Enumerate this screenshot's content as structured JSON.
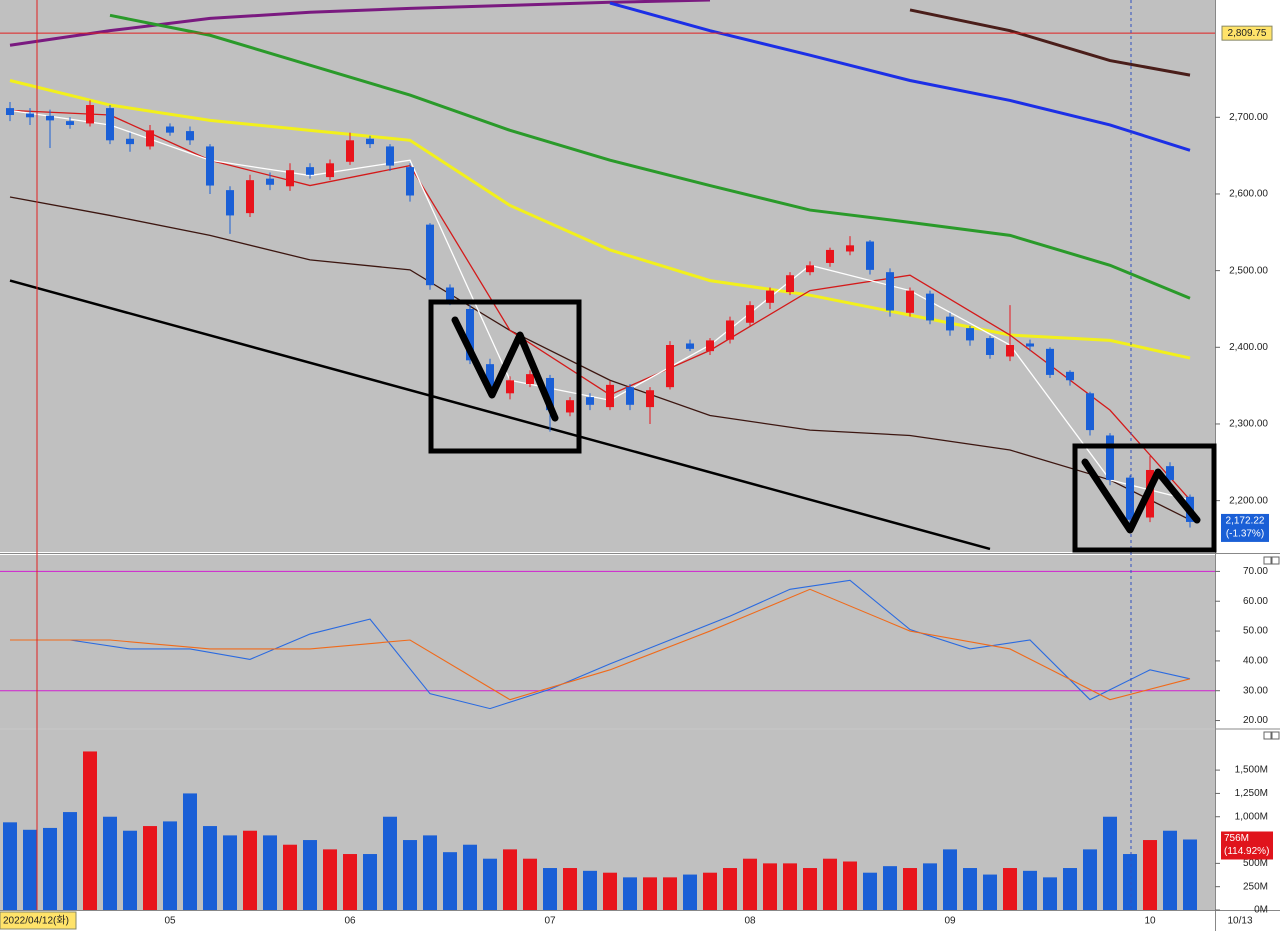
{
  "chart_data": [
    {
      "type": "candlestick",
      "categories": [
        null,
        null,
        null,
        null,
        null,
        null,
        null,
        null,
        "05",
        null,
        null,
        null,
        null,
        null,
        null,
        null,
        null,
        "06",
        null,
        null,
        null,
        null,
        null,
        null,
        null,
        null,
        null,
        "07",
        null,
        null,
        null,
        null,
        null,
        null,
        null,
        null,
        null,
        "08",
        null,
        null,
        null,
        null,
        null,
        null,
        null,
        null,
        null,
        "09",
        null,
        null,
        null,
        null,
        null,
        null,
        null,
        null,
        null,
        "10",
        null,
        null
      ],
      "open": [
        2712,
        2705,
        2702,
        2695,
        2692,
        2712,
        2672,
        2662,
        2688,
        2682,
        2662,
        2605,
        2575,
        2620,
        2610,
        2635,
        2622,
        2642,
        2672,
        2662,
        2635,
        2560,
        2478,
        2450,
        2378,
        2340,
        2352,
        2360,
        2315,
        2335,
        2322,
        2348,
        2322,
        2348,
        2405,
        2395,
        2410,
        2432,
        2458,
        2472,
        2498,
        2510,
        2525,
        2538,
        2498,
        2445,
        2470,
        2440,
        2425,
        2412,
        2388,
        2405,
        2398,
        2368,
        2340,
        2285,
        2230,
        2178,
        2245,
        2205
      ],
      "high": [
        2720,
        2712,
        2710,
        2700,
        2722,
        2716,
        2680,
        2690,
        2692,
        2688,
        2665,
        2610,
        2625,
        2628,
        2640,
        2640,
        2645,
        2680,
        2676,
        2665,
        2640,
        2562,
        2482,
        2455,
        2385,
        2362,
        2370,
        2364,
        2335,
        2340,
        2356,
        2352,
        2348,
        2408,
        2410,
        2412,
        2440,
        2460,
        2478,
        2498,
        2512,
        2530,
        2545,
        2540,
        2503,
        2478,
        2474,
        2445,
        2428,
        2415,
        2455,
        2410,
        2400,
        2370,
        2342,
        2288,
        2233,
        2258,
        2250,
        2208
      ],
      "low": [
        2695,
        2690,
        2660,
        2685,
        2688,
        2665,
        2655,
        2658,
        2676,
        2664,
        2600,
        2548,
        2570,
        2605,
        2604,
        2620,
        2618,
        2638,
        2660,
        2630,
        2590,
        2475,
        2455,
        2378,
        2336,
        2332,
        2348,
        2290,
        2310,
        2318,
        2318,
        2318,
        2300,
        2345,
        2395,
        2390,
        2405,
        2428,
        2450,
        2468,
        2494,
        2505,
        2520,
        2495,
        2440,
        2440,
        2430,
        2415,
        2402,
        2385,
        2382,
        2395,
        2360,
        2350,
        2285,
        2220,
        2160,
        2172,
        2222,
        2165
      ],
      "close": [
        2703,
        2700,
        2696,
        2690,
        2716,
        2670,
        2665,
        2683,
        2680,
        2670,
        2611,
        2572,
        2618,
        2612,
        2631,
        2625,
        2640,
        2670,
        2665,
        2637,
        2598,
        2481,
        2461,
        2383,
        2344,
        2357,
        2365,
        2318,
        2331,
        2325,
        2351,
        2325,
        2344,
        2403,
        2398,
        2409,
        2435,
        2455,
        2474,
        2494,
        2507,
        2527,
        2533,
        2501,
        2448,
        2474,
        2435,
        2422,
        2409,
        2390,
        2403,
        2401,
        2364,
        2357,
        2292,
        2227,
        2175,
        2240,
        2227,
        2172.22
      ],
      "up_color": "#e8141c",
      "down_color": "#1a5fd6",
      "series": [
        {
          "color": "#7a1a80",
          "x": [
            0,
            5,
            10,
            15,
            20,
            25,
            30,
            35
          ],
          "values": [
            2794,
            2813,
            2829,
            2837,
            2842,
            2846,
            2850,
            2853
          ]
        },
        {
          "color": "#4a1e1a",
          "x": [
            45,
            50,
            55,
            59
          ],
          "values": [
            2840,
            2813,
            2774,
            2755
          ]
        },
        {
          "color": "#1c2fe6",
          "x": [
            30,
            35,
            40,
            45,
            50,
            55,
            59
          ],
          "values": [
            2849,
            2813,
            2781,
            2748,
            2722,
            2690,
            2657
          ]
        },
        {
          "color": "#2a9a2a",
          "x": [
            5,
            10,
            15,
            20,
            25,
            30,
            35,
            40,
            45,
            50,
            55,
            59
          ],
          "values": [
            2833,
            2807,
            2768,
            2729,
            2683,
            2644,
            2611,
            2579,
            2563,
            2546,
            2507,
            2464
          ]
        },
        {
          "color": "#f2f01c",
          "x": [
            0,
            5,
            10,
            15,
            20,
            25,
            30,
            35,
            40,
            45,
            50,
            55,
            59
          ],
          "values": [
            2748,
            2716,
            2696,
            2683,
            2670,
            2585,
            2527,
            2487,
            2468,
            2442,
            2416,
            2409,
            2386
          ]
        },
        {
          "color": "#3c1610",
          "x": [
            0,
            5,
            10,
            15,
            20,
            25,
            30,
            35,
            40,
            45,
            50,
            55,
            59
          ],
          "values": [
            2596,
            2572,
            2546,
            2514,
            2501,
            2422,
            2357,
            2311,
            2292,
            2285,
            2266,
            2227,
            2175
          ]
        },
        {
          "color": "#d41a1a",
          "x": [
            0,
            5,
            10,
            15,
            20,
            25,
            30,
            35,
            40,
            45,
            50,
            55,
            59
          ],
          "values": [
            2709,
            2703,
            2644,
            2611,
            2637,
            2422,
            2338,
            2396,
            2474,
            2494,
            2416,
            2318,
            2201
          ]
        },
        {
          "color": "#ffffff",
          "x": [
            0,
            5,
            10,
            15,
            20,
            25,
            30,
            35,
            40,
            45,
            50,
            55,
            59
          ],
          "values": [
            2709,
            2690,
            2644,
            2624,
            2644,
            2357,
            2331,
            2403,
            2507,
            2474,
            2403,
            2227,
            2201
          ]
        },
        {
          "color": "#000000",
          "x": [
            0,
            49
          ],
          "values": [
            2487,
            2137
          ]
        }
      ],
      "ylim": [
        2133,
        2853
      ],
      "yticks": [
        {
          "value": 2200,
          "label": "2,200.00"
        },
        {
          "value": 2300,
          "label": "2,300.00"
        },
        {
          "value": 2400,
          "label": "2,400.00"
        },
        {
          "value": 2500,
          "label": "2,500.00"
        },
        {
          "value": 2600,
          "label": "2,600.00"
        },
        {
          "value": 2700,
          "label": "2,700.00"
        }
      ],
      "ref_line": {
        "value": 2809.75,
        "label": "2,809.75"
      },
      "last_label": "2,172.22",
      "change_label": "(-1.37%)",
      "crosshair_date": "2022/04/12(화)",
      "end_date": "10/13"
    },
    {
      "type": "line",
      "series": [
        {
          "color": "#2a6ae0",
          "x": [
            0,
            3,
            6,
            9,
            12,
            15,
            18,
            21,
            24,
            27,
            30,
            33,
            36,
            39,
            42,
            45,
            48,
            51,
            54,
            57,
            59
          ],
          "values": [
            47,
            47,
            44,
            44,
            40.5,
            49,
            54,
            29,
            24,
            30.5,
            39,
            47,
            55,
            64,
            67,
            50.5,
            44,
            47,
            27,
            37,
            34
          ]
        },
        {
          "color": "#f06a1a",
          "x": [
            0,
            5,
            10,
            15,
            20,
            25,
            30,
            35,
            40,
            45,
            50,
            55,
            59
          ],
          "values": [
            47,
            47,
            44,
            44,
            47,
            27,
            37,
            50,
            64,
            50,
            44,
            27,
            34
          ]
        }
      ],
      "levels": [
        70,
        30
      ],
      "level_color": "#d020d0",
      "ylim": [
        17.5,
        75.5
      ],
      "yticks": [
        {
          "value": 20,
          "label": "20.00"
        },
        {
          "value": 30,
          "label": "30.00"
        },
        {
          "value": 40,
          "label": "40.00"
        },
        {
          "value": 50,
          "label": "50.00"
        },
        {
          "value": 60,
          "label": "60.00"
        },
        {
          "value": 70,
          "label": "70.00"
        }
      ]
    },
    {
      "type": "bar",
      "values": [
        940,
        860,
        880,
        1050,
        1700,
        1000,
        850,
        900,
        950,
        1250,
        900,
        800,
        850,
        800,
        700,
        750,
        650,
        600,
        600,
        1000,
        750,
        800,
        620,
        700,
        550,
        650,
        550,
        450,
        450,
        420,
        400,
        350,
        350,
        350,
        380,
        400,
        450,
        550,
        500,
        500,
        450,
        550,
        520,
        400,
        470,
        450,
        500,
        650,
        450,
        380,
        450,
        420,
        350,
        450,
        650,
        1000,
        600,
        750,
        850,
        756
      ],
      "ylim": [
        0,
        1930
      ],
      "yticks": [
        {
          "value": 0,
          "label": "0M"
        },
        {
          "value": 250,
          "label": "250M"
        },
        {
          "value": 500,
          "label": "500M"
        },
        {
          "value": 1000,
          "label": "1,000M"
        },
        {
          "value": 1250,
          "label": "1,250M"
        },
        {
          "value": 1500,
          "label": "1,500M"
        }
      ],
      "last_label": "756M",
      "change_label": "(114.92%)"
    }
  ]
}
